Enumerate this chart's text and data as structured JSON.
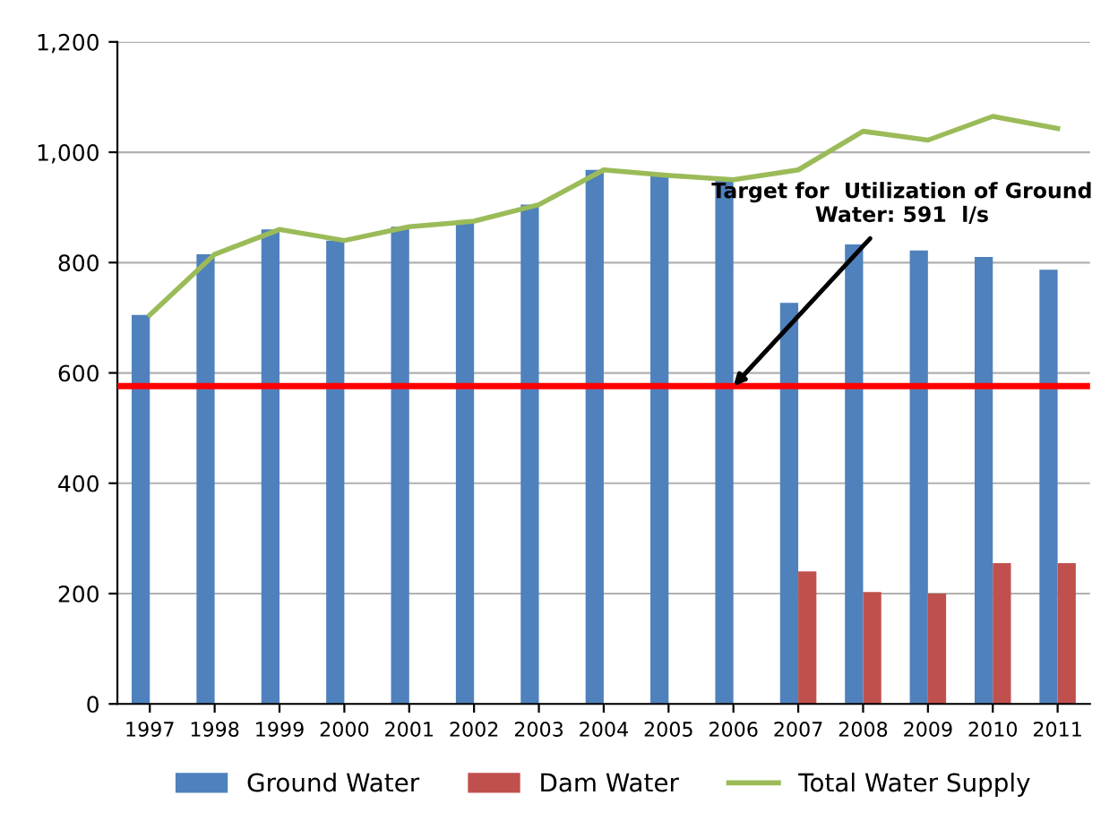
{
  "chart_data": {
    "type": "bar",
    "categories": [
      "1997",
      "1998",
      "1999",
      "2000",
      "2001",
      "2002",
      "2003",
      "2004",
      "2005",
      "2006",
      "2007",
      "2008",
      "2009",
      "2010",
      "2011"
    ],
    "series": [
      {
        "name": "Ground Water",
        "color": "#4f81bd",
        "values": [
          705,
          815,
          860,
          840,
          865,
          875,
          905,
          968,
          958,
          950,
          727,
          833,
          822,
          810,
          787
        ]
      },
      {
        "name": "Dam Water",
        "color": "#c0504d",
        "values": [
          null,
          null,
          null,
          null,
          null,
          null,
          null,
          null,
          null,
          null,
          240,
          203,
          200,
          255,
          255
        ]
      },
      {
        "name": "Total Water Supply",
        "type": "line",
        "color": "#9bbb59",
        "values": [
          705,
          815,
          860,
          840,
          865,
          875,
          905,
          968,
          958,
          950,
          968,
          1038,
          1022,
          1065,
          1043
        ]
      }
    ],
    "ylim": [
      0,
      1200
    ],
    "yticks": [
      {
        "value": 0,
        "label": "0"
      },
      {
        "value": 200,
        "label": "200"
      },
      {
        "value": 400,
        "label": "400"
      },
      {
        "value": 600,
        "label": "600"
      },
      {
        "value": 800,
        "label": "800"
      },
      {
        "value": 1000,
        "label": "1,000"
      },
      {
        "value": 1200,
        "label": "1,200"
      }
    ],
    "grid": "y",
    "legend": "bottom",
    "ref_lines": [
      {
        "axis": "y",
        "value": 576,
        "color": "#ff0000"
      }
    ],
    "annotations": [
      {
        "text": "Target for  Utilization of Ground Water: 591  l/s",
        "x": "2006",
        "y": 576
      }
    ]
  }
}
